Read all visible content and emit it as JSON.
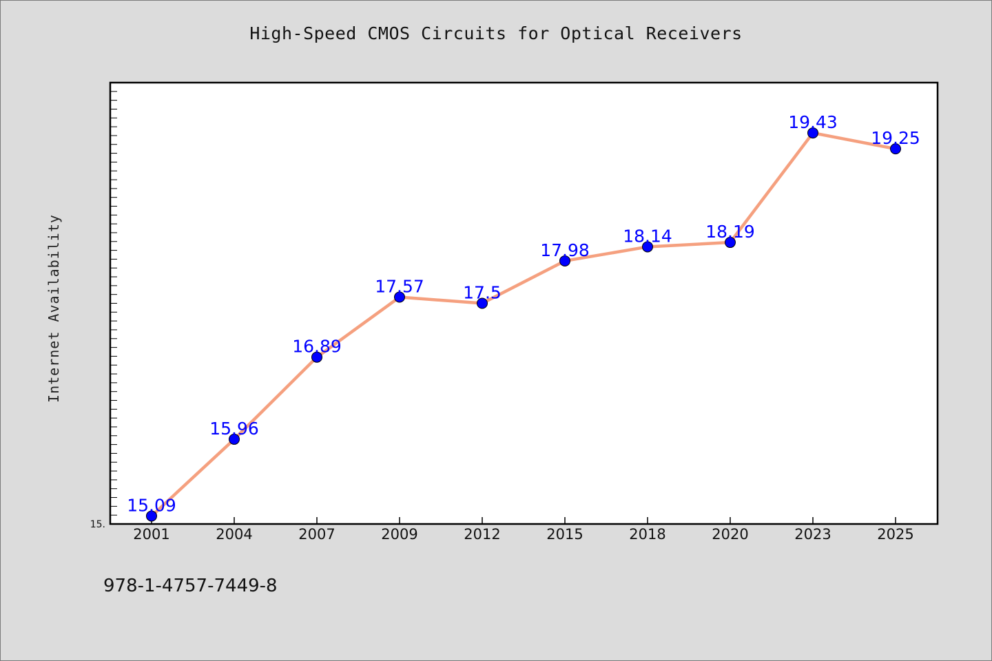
{
  "colors": {
    "page_background": "#dcdcdc",
    "plot_background": "#ffffff",
    "line": "#f5a07f",
    "marker": "#0000ff",
    "data_label": "#0000ff"
  },
  "footer_text": "978-1-4757-7449-8",
  "chart_data": {
    "type": "line",
    "title": "High-Speed CMOS Circuits for Optical Receivers",
    "xlabel": "",
    "ylabel": "Internet Availability",
    "categories": [
      "2001",
      "2004",
      "2007",
      "2009",
      "2012",
      "2015",
      "2018",
      "2020",
      "2023",
      "2025"
    ],
    "series": [
      {
        "values": [
          15.09,
          15.96,
          16.89,
          17.57,
          17.5,
          17.98,
          18.14,
          18.19,
          19.43,
          19.25
        ]
      }
    ],
    "data_labels": [
      "15.09",
      "15.96",
      "16.89",
      "17.57",
      "17.5",
      "17.98",
      "18.14",
      "18.19",
      "19.43",
      "19.25"
    ],
    "y_tick_label": "15.",
    "ylim": [
      15.0,
      20.0
    ],
    "grid": false,
    "legend": "none"
  }
}
